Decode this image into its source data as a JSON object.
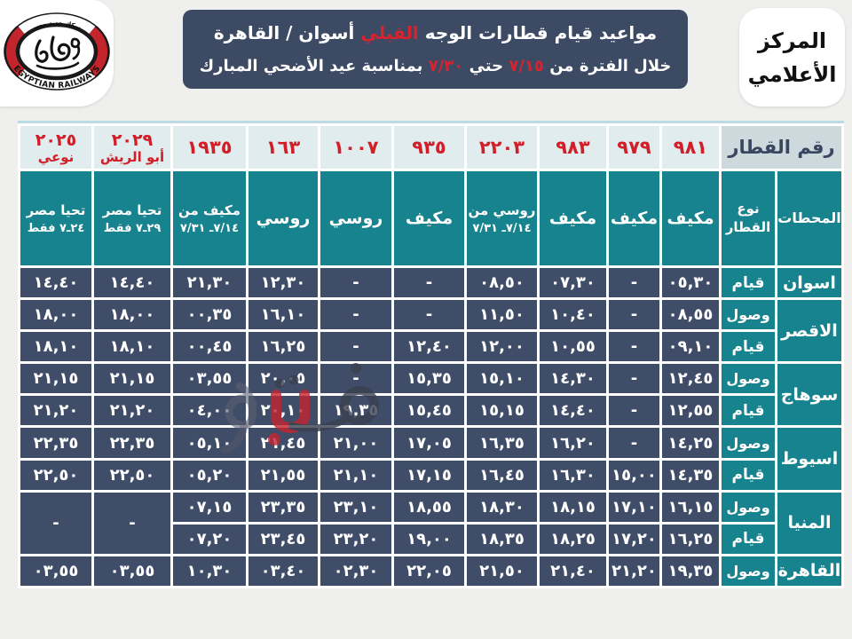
{
  "page_bg": "#efefee",
  "logo": {
    "arabic_top": "سكك حديد مصر",
    "latin_bottom": "EGYPTIAN RAILWAYS"
  },
  "title": {
    "line1_pre": "مواعيد قيام قطارات الوجه",
    "line1_highlight": "القبلي",
    "line1_post": "أسوان / القاهرة",
    "line2_pre": "خلال الفترة من",
    "line2_date1": "٧/١٥",
    "line2_mid": "حتي",
    "line2_date2": "٧/٣٠",
    "line2_post": "بمناسبة عيد الأضحي المبارك"
  },
  "media_center": {
    "line1": "المركز",
    "line2": "الأعلامي"
  },
  "watermark": {
    "text": "فيتو"
  },
  "colors": {
    "navy": "#3d4a64",
    "teal": "#16838e",
    "red": "#d01f28",
    "header_bg": "#e1ecee",
    "corner_bg": "#ccd9dd",
    "cell_navy": "#404d69"
  },
  "table": {
    "corner": {
      "train_number": "رقم القطار",
      "stations": "المحطات",
      "train_type": "نوع القطار"
    },
    "columns": [
      {
        "number": "٩٨١",
        "label": "",
        "type": [
          "مكيف"
        ]
      },
      {
        "number": "٩٧٩",
        "label": "",
        "type": [
          "مكيف"
        ]
      },
      {
        "number": "٩٨٣",
        "label": "",
        "type": [
          "مكيف"
        ]
      },
      {
        "number": "٢٢٠٣",
        "label": "",
        "type": [
          "روسي من",
          "٧/١٤ـ ٧/٣١"
        ]
      },
      {
        "number": "٩٣٥",
        "label": "",
        "type": [
          "مكيف"
        ]
      },
      {
        "number": "١٠٠٧",
        "label": "",
        "type": [
          "روسي"
        ]
      },
      {
        "number": "١٦٣",
        "label": "",
        "type": [
          "روسي"
        ]
      },
      {
        "number": "١٩٣٥",
        "label": "",
        "type": [
          "مكيف من",
          "٧/١٤ـ ٧/٣١"
        ]
      },
      {
        "number": "٢٠٢٩",
        "label": "أبو الريش",
        "type": [
          "تحيا مصر",
          "٢٩ـ٧ فقط"
        ]
      },
      {
        "number": "٢٠٢٥",
        "label": "نوعي",
        "type": [
          "تحيا مصر",
          "٢٤ـ٧ فقط"
        ]
      }
    ],
    "rows": [
      {
        "station": "اسوان",
        "span": 1,
        "dir": "قيام",
        "times": [
          "٠٥,٣٠",
          "-",
          "٠٧,٣٠",
          "٠٨,٥٠",
          "-",
          "-",
          "١٢,٣٠",
          "٢١,٣٠",
          "١٤,٤٠",
          "١٤,٤٠"
        ]
      },
      {
        "station": "الاقصر",
        "span": 2,
        "dir": "وصول",
        "times": [
          "٠٨,٥٥",
          "-",
          "١٠,٤٠",
          "١١,٥٠",
          "-",
          "-",
          "١٦,١٠",
          "٠٠,٣٥",
          "١٨,٠٠",
          "١٨,٠٠"
        ]
      },
      {
        "dir": "قيام",
        "times": [
          "٠٩,١٠",
          "-",
          "١٠,٥٥",
          "١٢,٠٠",
          "١٢,٤٠",
          "-",
          "١٦,٢٥",
          "٠٠,٤٥",
          "١٨,١٠",
          "١٨,١٠"
        ]
      },
      {
        "station": "سوهاج",
        "span": 2,
        "dir": "وصول",
        "times": [
          "١٢,٤٥",
          "-",
          "١٤,٣٠",
          "١٥,١٠",
          "١٥,٣٥",
          "-",
          "٢٠,٠٥",
          "٠٣,٥٥",
          "٢١,١٥",
          "٢١,١٥"
        ]
      },
      {
        "dir": "قيام",
        "times": [
          "١٢,٥٥",
          "-",
          "١٤,٤٠",
          "١٥,١٥",
          "١٥,٤٥",
          "١٩,٣٥",
          "٢٠,١٠",
          "٠٤,٠٠",
          "٢١,٢٠",
          "٢١,٢٠"
        ]
      },
      {
        "station": "اسيوط",
        "span": 2,
        "dir": "وصول",
        "times": [
          "١٤,٢٥",
          "-",
          "١٦,٢٠",
          "١٦,٣٥",
          "١٧,٠٥",
          "٢١,٠٠",
          "٢١,٤٥",
          "٠٥,١٠",
          "٢٢,٣٥",
          "٢٢,٣٥"
        ]
      },
      {
        "dir": "قيام",
        "times": [
          "١٤,٣٥",
          "١٥,٠٠",
          "١٦,٣٠",
          "١٦,٤٥",
          "١٧,١٥",
          "٢١,١٠",
          "٢١,٥٥",
          "٠٥,٢٠",
          "٢٢,٥٠",
          "٢٢,٥٠"
        ]
      },
      {
        "station": "المنيا",
        "span": 2,
        "dir": "وصول",
        "merge_from": 8,
        "times": [
          "١٦,١٥",
          "١٧,١٠",
          "١٨,١٥",
          "١٨,٣٠",
          "١٨,٥٥",
          "٢٣,١٠",
          "٢٣,٣٥",
          "٠٧,١٥",
          "-",
          "-"
        ]
      },
      {
        "dir": "قيام",
        "times": [
          "١٦,٢٥",
          "١٧,٢٠",
          "١٨,٢٥",
          "١٨,٣٥",
          "١٩,٠٠",
          "٢٣,٢٠",
          "٢٣,٤٥",
          "٠٧,٢٠"
        ]
      },
      {
        "station": "القاهرة",
        "span": 1,
        "dir": "وصول",
        "times": [
          "١٩,٣٥",
          "٢١,٢٠",
          "٢١,٤٠",
          "٢١,٥٠",
          "٢٢,٠٥",
          "٠٢,٣٠",
          "٠٣,٤٠",
          "١٠,٣٠",
          "٠٣,٥٥",
          "٠٣,٥٥"
        ]
      }
    ]
  }
}
